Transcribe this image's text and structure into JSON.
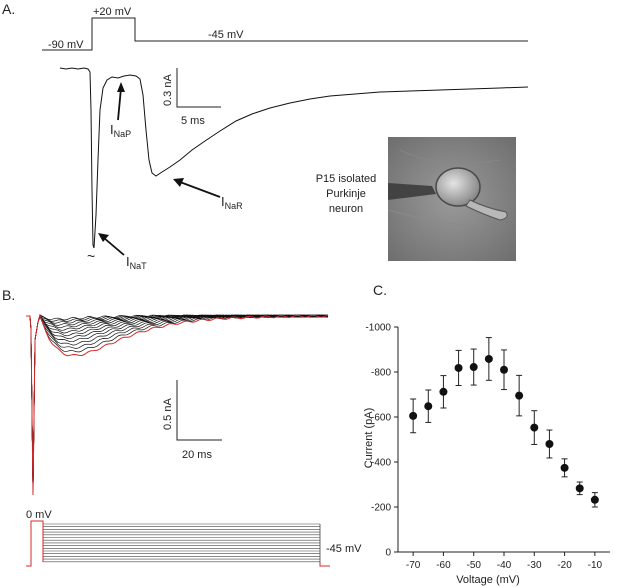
{
  "panels": {
    "a": "A.",
    "b": "B.",
    "c": "C."
  },
  "panel_a": {
    "protocol": {
      "hold": "-90 mV",
      "step": "+20 mV",
      "repol": "-45 mV"
    },
    "scale_y": "0.3 nA",
    "scale_x": "5 ms",
    "labels": {
      "nat_main": "I",
      "nat_sub": "NaT",
      "nap_main": "I",
      "nap_sub": "NaP",
      "nar_main": "I",
      "nar_sub": "NaR",
      "tilde": "~"
    },
    "neuron_caption": [
      "P15 isolated",
      "Purkinje",
      "neuron"
    ]
  },
  "panel_b": {
    "scale_y": "0.5 nA",
    "scale_x": "20 ms",
    "protocol": {
      "step": "0 mV",
      "end": "-45 mV"
    },
    "colors": {
      "traces": "#111111",
      "highlight": "#d42a2a"
    }
  },
  "chart_data": {
    "type": "scatter",
    "x": [
      -70,
      -65,
      -60,
      -55,
      -50,
      -45,
      -40,
      -35,
      -30,
      -25,
      -20,
      -15,
      -10
    ],
    "y": [
      -605,
      -648,
      -712,
      -818,
      -822,
      -858,
      -810,
      -695,
      -553,
      -480,
      -374,
      -283,
      -232
    ],
    "error": [
      75,
      72,
      72,
      78,
      80,
      95,
      88,
      90,
      75,
      62,
      40,
      28,
      32
    ],
    "xlabel": "Voltage (mV)",
    "ylabel": "Current (pA)",
    "xlim": [
      -75,
      -5
    ],
    "ylim": [
      0,
      -1000
    ],
    "xticks": [
      "-70",
      "-60",
      "-50",
      "-40",
      "-30",
      "-20",
      "-10"
    ],
    "yticks": [
      "-1000",
      "-800",
      "-600",
      "-400",
      "-200",
      "0"
    ],
    "marker_color": "#111111"
  }
}
